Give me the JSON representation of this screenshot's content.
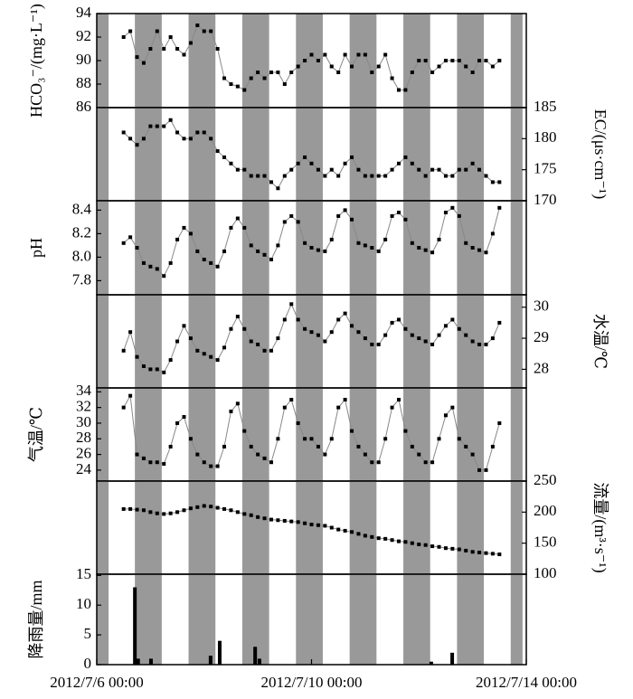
{
  "shaded_x": [
    [
      0,
      0.22
    ],
    [
      0.71,
      1.21
    ],
    [
      1.71,
      2.21
    ],
    [
      2.71,
      3.21
    ],
    [
      3.71,
      4.21
    ],
    [
      4.71,
      5.21
    ],
    [
      5.71,
      6.21
    ],
    [
      6.71,
      7.21
    ],
    [
      7.71,
      7.93
    ]
  ],
  "chart_data": [
    {
      "type": "line",
      "ylabel": "HCO₃⁻/(mg·L⁻¹)",
      "axis_side": "left",
      "xlim": [
        0,
        8
      ],
      "ylim": [
        86,
        94
      ],
      "yticks": [
        86,
        88,
        90,
        92,
        94
      ],
      "color": "#888888",
      "x": [
        0.5,
        0.625,
        0.75,
        0.875,
        1,
        1.125,
        1.25,
        1.375,
        1.5,
        1.625,
        1.75,
        1.875,
        2,
        2.125,
        2.25,
        2.375,
        2.5,
        2.625,
        2.75,
        2.875,
        3,
        3.125,
        3.25,
        3.375,
        3.5,
        3.625,
        3.75,
        3.875,
        4,
        4.125,
        4.25,
        4.375,
        4.5,
        4.625,
        4.75,
        4.875,
        5,
        5.125,
        5.25,
        5.375,
        5.5,
        5.625,
        5.75,
        5.875,
        6,
        6.125,
        6.25,
        6.375,
        6.5,
        6.625,
        6.75,
        6.875,
        7,
        7.125,
        7.25,
        7.375,
        7.5
      ],
      "values": [
        92,
        92.5,
        90.3,
        89.8,
        91,
        92.5,
        91,
        92,
        91,
        90.5,
        91.5,
        93,
        92.5,
        92.5,
        91,
        88.5,
        88,
        87.8,
        87.5,
        88.5,
        89,
        88.5,
        89,
        89,
        88,
        89,
        89.5,
        90,
        90.5,
        90,
        90.5,
        89.5,
        89,
        90.5,
        89.5,
        90.5,
        90.5,
        89,
        89.5,
        90.5,
        88.5,
        87.5,
        87.5,
        89,
        90,
        90,
        89,
        89.5,
        90,
        90,
        90,
        89.5,
        89,
        90,
        90,
        89.5,
        90
      ]
    },
    {
      "type": "line",
      "ylabel": "EC/(μs·cm⁻¹)",
      "axis_side": "right",
      "xlim": [
        0,
        8
      ],
      "ylim": [
        170,
        185
      ],
      "yticks": [
        170,
        175,
        180,
        185
      ],
      "color": "#888888",
      "x": [
        0.5,
        0.625,
        0.75,
        0.875,
        1,
        1.125,
        1.25,
        1.375,
        1.5,
        1.625,
        1.75,
        1.875,
        2,
        2.125,
        2.25,
        2.375,
        2.5,
        2.625,
        2.75,
        2.875,
        3,
        3.125,
        3.25,
        3.375,
        3.5,
        3.625,
        3.75,
        3.875,
        4,
        4.125,
        4.25,
        4.375,
        4.5,
        4.625,
        4.75,
        4.875,
        5,
        5.125,
        5.25,
        5.375,
        5.5,
        5.625,
        5.75,
        5.875,
        6,
        6.125,
        6.25,
        6.375,
        6.5,
        6.625,
        6.75,
        6.875,
        7,
        7.125,
        7.25,
        7.375,
        7.5
      ],
      "values": [
        181,
        180,
        179,
        180,
        182,
        182,
        182,
        183,
        181,
        180,
        180,
        181,
        181,
        180,
        178,
        177,
        176,
        175,
        175,
        174,
        174,
        174,
        173,
        172,
        174,
        175,
        176,
        177,
        176,
        175,
        174,
        175,
        174,
        176,
        177,
        175,
        174,
        174,
        174,
        174,
        175,
        176,
        177,
        176,
        175,
        174,
        175,
        175,
        174,
        174,
        175,
        175,
        176,
        175,
        174,
        173,
        173
      ]
    },
    {
      "type": "line",
      "ylabel": "pH",
      "axis_side": "left",
      "xlim": [
        0,
        8
      ],
      "ylim": [
        7.68,
        8.48
      ],
      "yticks": [
        7.8,
        {
          "value": 8,
          "label": "8.0"
        },
        8.2,
        8.4
      ],
      "color": "#888888",
      "x": [
        0.5,
        0.625,
        0.75,
        0.875,
        1,
        1.125,
        1.25,
        1.375,
        1.5,
        1.625,
        1.75,
        1.875,
        2,
        2.125,
        2.25,
        2.375,
        2.5,
        2.625,
        2.75,
        2.875,
        3,
        3.125,
        3.25,
        3.375,
        3.5,
        3.625,
        3.75,
        3.875,
        4,
        4.125,
        4.25,
        4.375,
        4.5,
        4.625,
        4.75,
        4.875,
        5,
        5.125,
        5.25,
        5.375,
        5.5,
        5.625,
        5.75,
        5.875,
        6,
        6.125,
        6.25,
        6.375,
        6.5,
        6.625,
        6.75,
        6.875,
        7,
        7.125,
        7.25,
        7.375,
        7.5
      ],
      "values": [
        8.12,
        8.17,
        8.08,
        7.95,
        7.92,
        7.9,
        7.84,
        7.95,
        8.15,
        8.25,
        8.2,
        8.05,
        7.98,
        7.95,
        7.92,
        8.05,
        8.25,
        8.33,
        8.25,
        8.1,
        8.05,
        8.02,
        7.98,
        8.1,
        8.3,
        8.35,
        8.3,
        8.12,
        8.08,
        8.06,
        8.05,
        8.15,
        8.35,
        8.4,
        8.32,
        8.12,
        8.1,
        8.08,
        8.05,
        8.15,
        8.35,
        8.38,
        8.32,
        8.12,
        8.08,
        8.06,
        8.04,
        8.15,
        8.38,
        8.42,
        8.35,
        8.12,
        8.08,
        8.06,
        8.04,
        8.2,
        8.42
      ]
    },
    {
      "type": "line",
      "ylabel": "水温/℃",
      "axis_side": "right",
      "xlim": [
        0,
        8
      ],
      "ylim": [
        27.4,
        30.4
      ],
      "yticks": [
        28,
        29,
        30
      ],
      "color": "#888888",
      "x": [
        0.5,
        0.625,
        0.75,
        0.875,
        1,
        1.125,
        1.25,
        1.375,
        1.5,
        1.625,
        1.75,
        1.875,
        2,
        2.125,
        2.25,
        2.375,
        2.5,
        2.625,
        2.75,
        2.875,
        3,
        3.125,
        3.25,
        3.375,
        3.5,
        3.625,
        3.75,
        3.875,
        4,
        4.125,
        4.25,
        4.375,
        4.5,
        4.625,
        4.75,
        4.875,
        5,
        5.125,
        5.25,
        5.375,
        5.5,
        5.625,
        5.75,
        5.875,
        6,
        6.125,
        6.25,
        6.375,
        6.5,
        6.625,
        6.75,
        6.875,
        7,
        7.125,
        7.25,
        7.375,
        7.5
      ],
      "values": [
        28.6,
        29.2,
        28.4,
        28.1,
        28,
        28,
        27.9,
        28.3,
        28.9,
        29.4,
        29,
        28.6,
        28.5,
        28.4,
        28.3,
        28.7,
        29.3,
        29.7,
        29.3,
        28.9,
        28.8,
        28.6,
        28.6,
        29,
        29.6,
        30.1,
        29.6,
        29.3,
        29.2,
        29.1,
        28.9,
        29.2,
        29.6,
        29.8,
        29.4,
        29.2,
        29,
        28.8,
        28.8,
        29.1,
        29.5,
        29.6,
        29.3,
        29.1,
        29,
        28.9,
        28.8,
        29.1,
        29.4,
        29.6,
        29.3,
        29.1,
        28.9,
        28.8,
        28.8,
        29,
        29.5
      ]
    },
    {
      "type": "line",
      "ylabel": "气温/℃",
      "axis_side": "left",
      "xlim": [
        0,
        8
      ],
      "ylim": [
        22.6,
        34.5
      ],
      "yticks": [
        24,
        26,
        28,
        30,
        32,
        34
      ],
      "color": "#888888",
      "x": [
        0.5,
        0.625,
        0.75,
        0.875,
        1,
        1.125,
        1.25,
        1.375,
        1.5,
        1.625,
        1.75,
        1.875,
        2,
        2.125,
        2.25,
        2.375,
        2.5,
        2.625,
        2.75,
        2.875,
        3,
        3.125,
        3.25,
        3.375,
        3.5,
        3.625,
        3.75,
        3.875,
        4,
        4.125,
        4.25,
        4.375,
        4.5,
        4.625,
        4.75,
        4.875,
        5,
        5.125,
        5.25,
        5.375,
        5.5,
        5.625,
        5.75,
        5.875,
        6,
        6.125,
        6.25,
        6.375,
        6.5,
        6.625,
        6.75,
        6.875,
        7,
        7.125,
        7.25,
        7.375,
        7.5
      ],
      "values": [
        32,
        33.5,
        26,
        25.5,
        25,
        25,
        24.8,
        27,
        30,
        30.8,
        28,
        26,
        25,
        24.5,
        24.5,
        27,
        31.5,
        32.5,
        29,
        27,
        26,
        25.5,
        25,
        28,
        32,
        33,
        30,
        28,
        28,
        27,
        26,
        28,
        32,
        33,
        29,
        27,
        26,
        25,
        25,
        28,
        32,
        33,
        29,
        27,
        26,
        25,
        25,
        28,
        31,
        32,
        28,
        27,
        26,
        24,
        24,
        27,
        30
      ]
    },
    {
      "type": "line",
      "ylabel": "流量/(m³·s⁻¹)",
      "axis_side": "right",
      "xlim": [
        0,
        8
      ],
      "ylim": [
        100,
        250
      ],
      "yticks": [
        100,
        150,
        200,
        250
      ],
      "color": "#888888",
      "x": [
        0.5,
        0.625,
        0.75,
        0.875,
        1,
        1.125,
        1.25,
        1.375,
        1.5,
        1.625,
        1.75,
        1.875,
        2,
        2.125,
        2.25,
        2.375,
        2.5,
        2.625,
        2.75,
        2.875,
        3,
        3.125,
        3.25,
        3.375,
        3.5,
        3.625,
        3.75,
        3.875,
        4,
        4.125,
        4.25,
        4.375,
        4.5,
        4.625,
        4.75,
        4.875,
        5,
        5.125,
        5.25,
        5.375,
        5.5,
        5.625,
        5.75,
        5.875,
        6,
        6.125,
        6.25,
        6.375,
        6.5,
        6.625,
        6.75,
        6.875,
        7,
        7.125,
        7.25,
        7.375,
        7.5
      ],
      "values": [
        205,
        205,
        204,
        203,
        200,
        198,
        197,
        198,
        200,
        203,
        206,
        208,
        210,
        209,
        207,
        205,
        203,
        200,
        197,
        195,
        192,
        190,
        188,
        187,
        186,
        185,
        184,
        182,
        180,
        179,
        178,
        175,
        172,
        170,
        168,
        165,
        162,
        160,
        158,
        157,
        155,
        153,
        152,
        150,
        148,
        147,
        145,
        144,
        142,
        141,
        140,
        138,
        136,
        135,
        134,
        133,
        132
      ]
    },
    {
      "type": "bar",
      "ylabel": "降雨量/mm",
      "axis_side": "left",
      "xlim": [
        0,
        8
      ],
      "ylim": [
        0,
        15.2
      ],
      "yticks": [
        0,
        5,
        10,
        15
      ],
      "color": "#000000",
      "x": [
        0.71,
        0.77,
        1.01,
        2.12,
        2.29,
        2.95,
        3.03,
        6.23,
        6.62
      ],
      "values": [
        13,
        1,
        1,
        1.5,
        4,
        3,
        1,
        0.5,
        2
      ],
      "xticks": [
        {
          "value": 0,
          "label": "2012/7/6 00:00"
        },
        {
          "value": 4,
          "label": "2012/7/10 00:00"
        },
        {
          "value": 8,
          "label": "2012/7/14 00:00"
        }
      ]
    }
  ]
}
